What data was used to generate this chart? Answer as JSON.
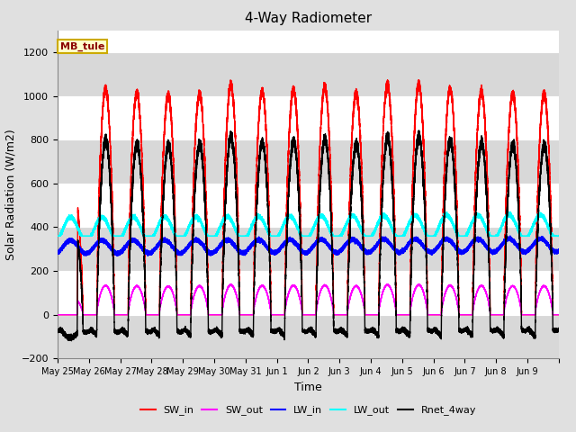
{
  "title": "4-Way Radiometer",
  "xlabel": "Time",
  "ylabel": "Solar Radiation (W/m2)",
  "ylim": [
    -200,
    1300
  ],
  "yticks": [
    -200,
    0,
    200,
    400,
    600,
    800,
    1000,
    1200
  ],
  "fig_bg_color": "#e0e0e0",
  "plot_bg_color": "#ffffff",
  "grid_bg_color": "#d8d8d8",
  "site_label": "MB_tule",
  "legend_entries": [
    "SW_in",
    "SW_out",
    "LW_in",
    "LW_out",
    "Rnet_4way"
  ],
  "line_colors": [
    "red",
    "magenta",
    "blue",
    "cyan",
    "black"
  ],
  "num_days": 16,
  "xtick_labels": [
    "May 25",
    "May 26",
    "May 27",
    "May 28",
    "May 29",
    "May 30",
    "May 31",
    "Jun 1",
    "Jun 2",
    "Jun 3",
    "Jun 4",
    "Jun 5",
    "Jun 6",
    "Jun 7",
    "Jun 8",
    "Jun 9",
    ""
  ]
}
